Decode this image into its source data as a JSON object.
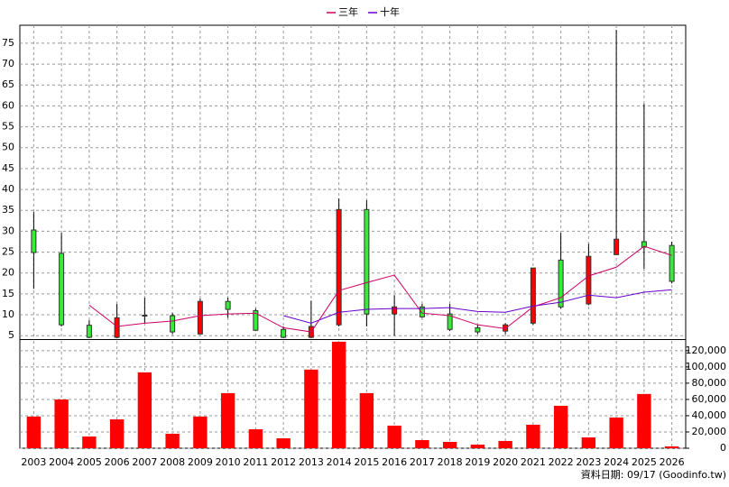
{
  "chart_data": {
    "type": "candlestick",
    "categories": [
      "2003",
      "2004",
      "2005",
      "2006",
      "2007",
      "2008",
      "2009",
      "2010",
      "2011",
      "2012",
      "2013",
      "2014",
      "2015",
      "2016",
      "2017",
      "2018",
      "2019",
      "2020",
      "2021",
      "2022",
      "2023",
      "2024",
      "2025",
      "2026"
    ],
    "open": [
      30.3,
      24.7,
      7.5,
      4.6,
      9.9,
      9.8,
      5.4,
      13.2,
      11.0,
      6.5,
      4.6,
      7.6,
      35.2,
      10.2,
      11.9,
      10.2,
      6.9,
      6.1,
      8.0,
      23.1,
      12.6,
      24.4,
      27.5,
      26.6
    ],
    "high": [
      34.6,
      29.6,
      8.7,
      12.6,
      14.1,
      10.4,
      13.9,
      14.1,
      11.5,
      7.2,
      13.4,
      37.8,
      37.4,
      14.7,
      12.6,
      12.6,
      7.6,
      8.0,
      21.2,
      29.6,
      27.0,
      78.2,
      60.5,
      27.5
    ],
    "low": [
      16.2,
      7.2,
      4.4,
      4.4,
      8.0,
      5.4,
      5.4,
      9.3,
      6.1,
      4.4,
      4.4,
      7.2,
      7.2,
      5.0,
      9.3,
      6.1,
      5.4,
      5.4,
      7.6,
      11.5,
      12.3,
      24.4,
      21.0,
      17.5
    ],
    "close": [
      24.9,
      7.6,
      4.6,
      9.3,
      9.7,
      5.9,
      13.2,
      11.3,
      6.3,
      4.6,
      7.2,
      35.2,
      10.2,
      11.9,
      9.5,
      6.5,
      5.9,
      7.6,
      21.2,
      11.9,
      24.0,
      28.1,
      26.2,
      18.0
    ],
    "up_color": "#ff0000",
    "down_color": "#33ee33",
    "series": [
      {
        "name": "三年",
        "color": "#cc0066",
        "values": [
          null,
          null,
          12.3,
          7.2,
          8.0,
          8.5,
          9.8,
          10.2,
          10.4,
          6.9,
          5.9,
          15.8,
          17.7,
          19.5,
          10.4,
          9.8,
          7.6,
          6.7,
          11.9,
          14.1,
          19.3,
          21.4,
          26.4,
          24.2
        ]
      },
      {
        "name": "十年",
        "color": "#6600cc",
        "values": [
          null,
          null,
          null,
          null,
          null,
          null,
          null,
          null,
          null,
          9.8,
          8.0,
          10.6,
          11.3,
          11.5,
          11.5,
          11.7,
          10.8,
          10.6,
          12.1,
          13.0,
          14.7,
          14.1,
          15.4,
          16.0
        ]
      }
    ],
    "ylim": [
      4.4,
      79.3
    ],
    "yticks": [
      5,
      10,
      15,
      20,
      25,
      30,
      35,
      40,
      45,
      50,
      55,
      60,
      65,
      70,
      75
    ],
    "volume": {
      "color": "#ff0000",
      "values": [
        39000,
        60000,
        14400,
        35500,
        93300,
        17800,
        39000,
        67800,
        23300,
        12200,
        96700,
        131000,
        67800,
        27800,
        10000,
        7800,
        4400,
        8900,
        28900,
        52200,
        13300,
        37800,
        66700,
        2200
      ],
      "ylim": [
        0,
        132000
      ],
      "yticks": [
        0,
        {
          "value": 20000,
          "label": "20,000"
        },
        {
          "value": 40000,
          "label": "40,000"
        },
        {
          "value": 60000,
          "label": "60,000"
        },
        {
          "value": 80000,
          "label": "80,000"
        },
        {
          "value": 100000,
          "label": "100,000"
        },
        {
          "value": 120000,
          "label": "120,000"
        }
      ]
    },
    "grid": true,
    "source": "資料日期: 09/17 (Goodinfo.tw)"
  }
}
